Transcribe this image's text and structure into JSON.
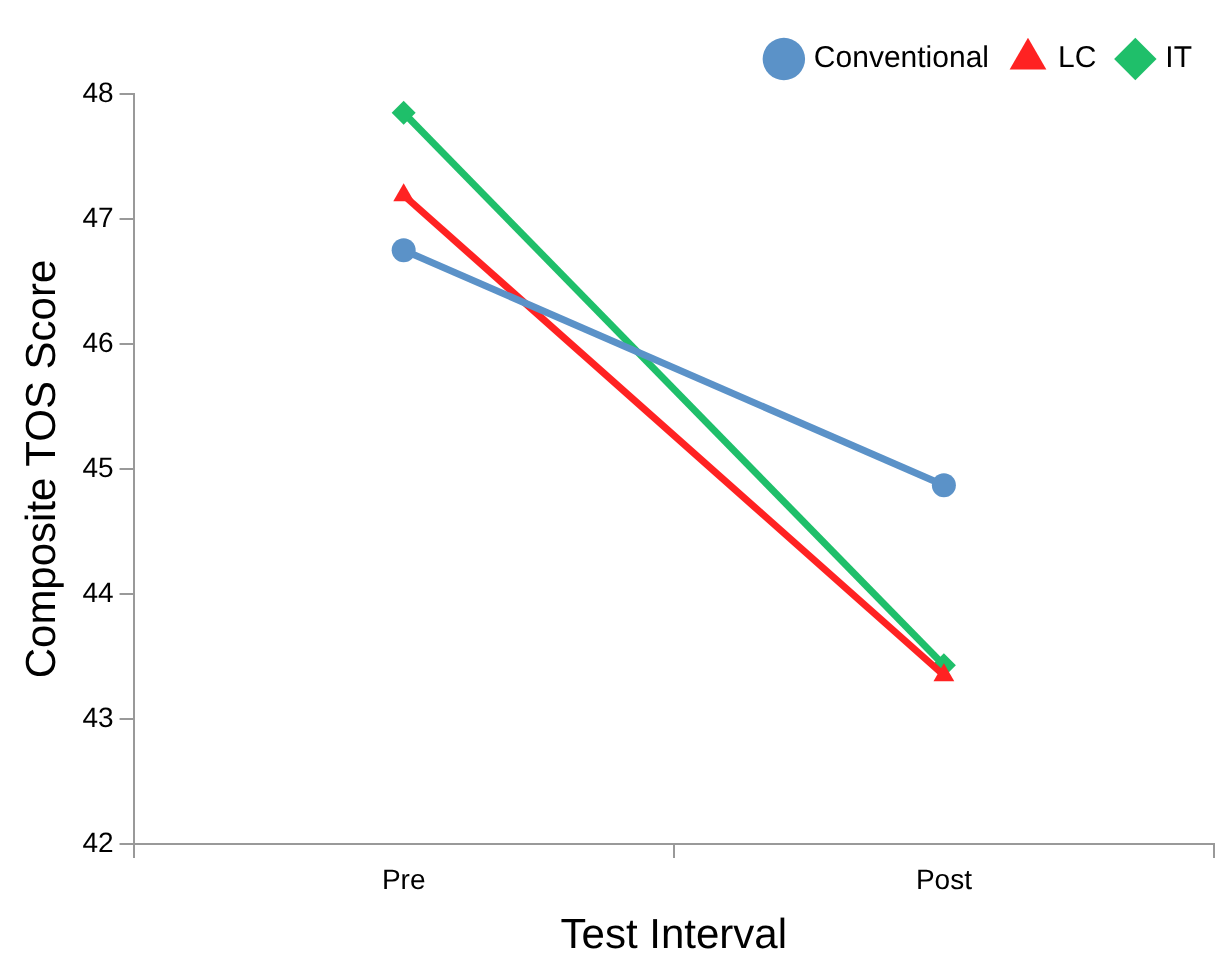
{
  "chart_data": {
    "type": "line",
    "xlabel": "Test Interval",
    "ylabel": "Composite TOS Score",
    "categories": [
      "Pre",
      "Post"
    ],
    "ylim": [
      42,
      48
    ],
    "yticks": [
      42,
      43,
      44,
      45,
      46,
      47,
      48
    ],
    "grid": false,
    "legend": "top right",
    "series": [
      {
        "name": "Conventional",
        "color": "#5b92c8",
        "marker": "circle",
        "values": [
          46.75,
          44.87
        ]
      },
      {
        "name": "LC",
        "color": "#ff2222",
        "marker": "triangle",
        "values": [
          47.19,
          43.35
        ]
      },
      {
        "name": "IT",
        "color": "#1fbf6a",
        "marker": "diamond",
        "values": [
          47.85,
          43.43
        ]
      }
    ]
  }
}
